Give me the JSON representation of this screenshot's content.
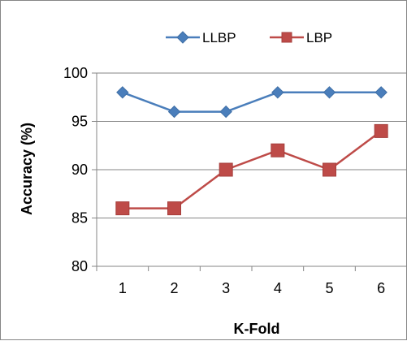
{
  "chart_data": {
    "type": "line",
    "title": "",
    "xlabel": "K-Fold",
    "ylabel": "Accuracy (%)",
    "categories": [
      "1",
      "2",
      "3",
      "4",
      "5",
      "6"
    ],
    "ylim": [
      80,
      100
    ],
    "yticks": [
      80,
      85,
      90,
      95,
      100
    ],
    "grid": "horizontal",
    "legend_position": "top",
    "series": [
      {
        "name": "LLBP",
        "values": [
          98,
          96,
          96,
          98,
          98,
          98
        ],
        "color": "#4a7ebb",
        "marker": "diamond"
      },
      {
        "name": "LBP",
        "values": [
          86,
          86,
          90,
          92,
          90,
          94
        ],
        "color": "#be4b48",
        "marker": "square"
      }
    ]
  }
}
